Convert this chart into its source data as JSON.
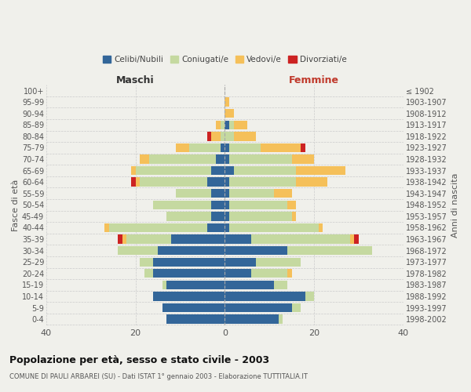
{
  "age_groups": [
    "0-4",
    "5-9",
    "10-14",
    "15-19",
    "20-24",
    "25-29",
    "30-34",
    "35-39",
    "40-44",
    "45-49",
    "50-54",
    "55-59",
    "60-64",
    "65-69",
    "70-74",
    "75-79",
    "80-84",
    "85-89",
    "90-94",
    "95-99",
    "100+"
  ],
  "birth_years": [
    "1998-2002",
    "1993-1997",
    "1988-1992",
    "1983-1987",
    "1978-1982",
    "1973-1977",
    "1968-1972",
    "1963-1967",
    "1958-1962",
    "1953-1957",
    "1948-1952",
    "1943-1947",
    "1938-1942",
    "1933-1937",
    "1928-1932",
    "1923-1927",
    "1918-1922",
    "1913-1917",
    "1908-1912",
    "1903-1907",
    "≤ 1902"
  ],
  "males": {
    "celibi": [
      13,
      14,
      16,
      13,
      16,
      16,
      15,
      12,
      4,
      3,
      3,
      3,
      4,
      3,
      2,
      1,
      0,
      0,
      0,
      0,
      0
    ],
    "coniugati": [
      0,
      0,
      0,
      1,
      2,
      3,
      9,
      10,
      22,
      10,
      13,
      8,
      15,
      17,
      15,
      7,
      1,
      1,
      0,
      0,
      0
    ],
    "vedovi": [
      0,
      0,
      0,
      0,
      0,
      0,
      0,
      1,
      1,
      0,
      0,
      0,
      1,
      1,
      2,
      3,
      2,
      1,
      0,
      0,
      0
    ],
    "divorziati": [
      0,
      0,
      0,
      0,
      0,
      0,
      0,
      1,
      0,
      0,
      0,
      0,
      1,
      0,
      0,
      0,
      1,
      0,
      0,
      0,
      0
    ]
  },
  "females": {
    "nubili": [
      12,
      15,
      18,
      11,
      6,
      7,
      14,
      6,
      1,
      1,
      1,
      1,
      1,
      2,
      1,
      1,
      0,
      1,
      0,
      0,
      0
    ],
    "coniugate": [
      1,
      2,
      2,
      3,
      8,
      10,
      19,
      22,
      20,
      14,
      13,
      10,
      15,
      14,
      14,
      7,
      2,
      1,
      0,
      0,
      0
    ],
    "vedove": [
      0,
      0,
      0,
      0,
      1,
      0,
      0,
      1,
      1,
      1,
      2,
      4,
      7,
      11,
      5,
      9,
      5,
      3,
      2,
      1,
      0
    ],
    "divorziate": [
      0,
      0,
      0,
      0,
      0,
      0,
      0,
      1,
      0,
      0,
      0,
      0,
      0,
      0,
      0,
      1,
      0,
      0,
      0,
      0,
      0
    ]
  },
  "color_celibi": "#336699",
  "color_coniugati": "#c5d9a0",
  "color_vedovi": "#f5c05a",
  "color_divorziati": "#cc2222",
  "xlim": 40,
  "title": "Popolazione per età, sesso e stato civile - 2003",
  "subtitle": "COMUNE DI PAULI ARBAREI (SU) - Dati ISTAT 1° gennaio 2003 - Elaborazione TUTTITALIA.IT",
  "xlabel_maschi": "Maschi",
  "xlabel_femmine": "Femmine",
  "ylabel": "Fasce di età",
  "ylabel2": "Anni di nascita",
  "bg_color": "#f0f0eb",
  "grid_color": "#cccccc"
}
